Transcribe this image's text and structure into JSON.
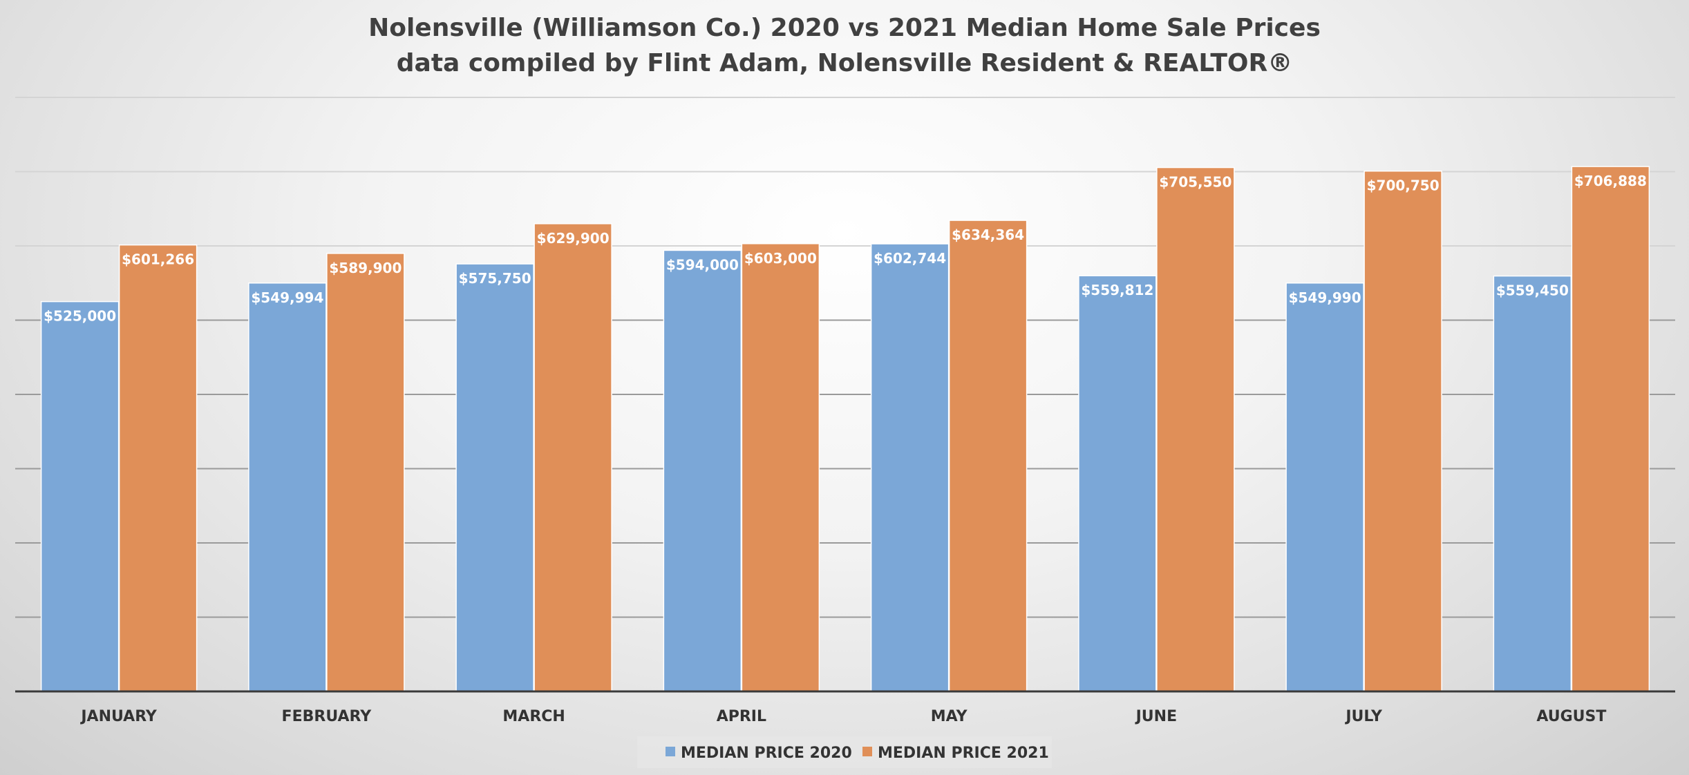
{
  "chart_data": {
    "type": "bar",
    "title": "Nolensville (Williamson Co.) 2020 vs 2021 Median Home Sale Prices",
    "subtitle": "data compiled by Flint Adam, Nolensville Resident & REALTOR®",
    "xlabel": "",
    "ylabel": "",
    "categories": [
      "JANUARY",
      "FEBRUARY",
      "MARCH",
      "APRIL",
      "MAY",
      "JUNE",
      "JULY",
      "AUGUST"
    ],
    "series": [
      {
        "name": "MEDIAN PRICE 2020",
        "color": "#7ba7d7",
        "values": [
          525000,
          549994,
          575750,
          594000,
          602744,
          559812,
          549990,
          559450
        ],
        "labels": [
          "$525,000",
          "$549,994",
          "$575,750",
          "$594,000",
          "$602,744",
          "$559,812",
          "$549,990",
          "$559,450"
        ]
      },
      {
        "name": "MEDIAN PRICE 2021",
        "color": "#e08f58",
        "values": [
          601266,
          589900,
          629900,
          603000,
          634364,
          705550,
          700750,
          706888
        ],
        "labels": [
          "$601,266",
          "$589,900",
          "$629,900",
          "$603,000",
          "$634,364",
          "$705,550",
          "$700,750",
          "$706,888"
        ]
      }
    ],
    "ylim": [
      0,
      800000
    ],
    "gridlines": true,
    "legend_position": "bottom-center"
  }
}
